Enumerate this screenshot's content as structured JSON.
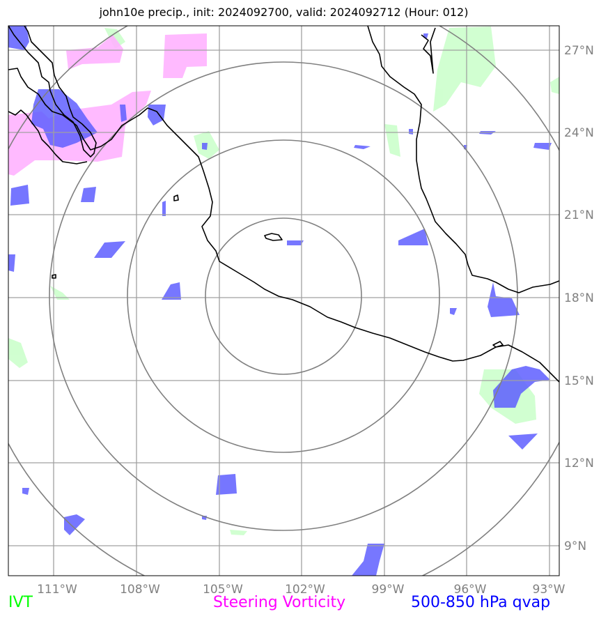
{
  "title": "john10e precip., init: 2024092700, valid: 2024092712 (Hour: 012)",
  "axes": {
    "lon_ticks": [
      "111°W",
      "108°W",
      "105°W",
      "102°W",
      "99°W",
      "96°W",
      "93°W"
    ],
    "lat_ticks": [
      "27°N",
      "24°N",
      "21°N",
      "18°N",
      "15°N",
      "12°N",
      "9°N"
    ]
  },
  "legend": [
    {
      "label": "IVT",
      "color": "#00ff00"
    },
    {
      "label": "Steering Vorticity",
      "color": "#ff00ff"
    },
    {
      "label": "500-850 hPa qvap",
      "color": "#0000ff"
    }
  ],
  "colors": {
    "ivt_fill": "#ccffcc",
    "vort_fill": "#ff99ff",
    "qvap_fill": "#6666ff",
    "gridline": "#999999",
    "range_ring": "#808080",
    "coastline": "#000000"
  }
}
